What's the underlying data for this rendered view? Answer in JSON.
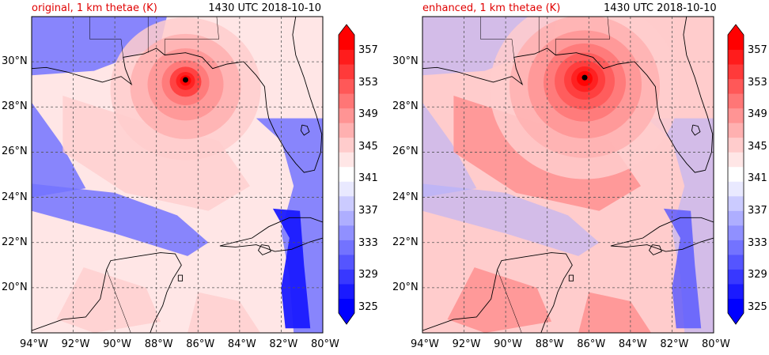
{
  "panels": [
    {
      "title": "original, 1 km thetae (K)",
      "time": "1430 UTC 2018-10-10",
      "variant": "original",
      "storm_center": {
        "lon": -86.6,
        "lat": 29.2
      }
    },
    {
      "title": "enhanced, 1 km thetae (K)",
      "time": "1430 UTC 2018-10-10",
      "variant": "enhanced",
      "storm_center": {
        "lon": -86.2,
        "lat": 29.3
      }
    }
  ],
  "lon_ticks": [
    "94°W",
    "92°W",
    "90°W",
    "88°W",
    "86°W",
    "84°W",
    "82°W",
    "80°W"
  ],
  "lat_ticks": [
    "30°N",
    "28°N",
    "26°N",
    "24°N",
    "22°N",
    "20°N"
  ],
  "colorbar": {
    "labels": [
      "357",
      "353",
      "349",
      "345",
      "341",
      "337",
      "333",
      "329",
      "325"
    ],
    "colors": [
      "#0000ff",
      "#1a1aff",
      "#3838ff",
      "#5555ff",
      "#7373ff",
      "#9090ff",
      "#aeaeff",
      "#cbcbff",
      "#e9e9ff",
      "#ffffff",
      "#ffe6e6",
      "#ffcccc",
      "#ffb0b0",
      "#ff9494",
      "#ff7676",
      "#ff5858",
      "#ff3a3a",
      "#ff1c1c",
      "#ff0000"
    ]
  }
}
